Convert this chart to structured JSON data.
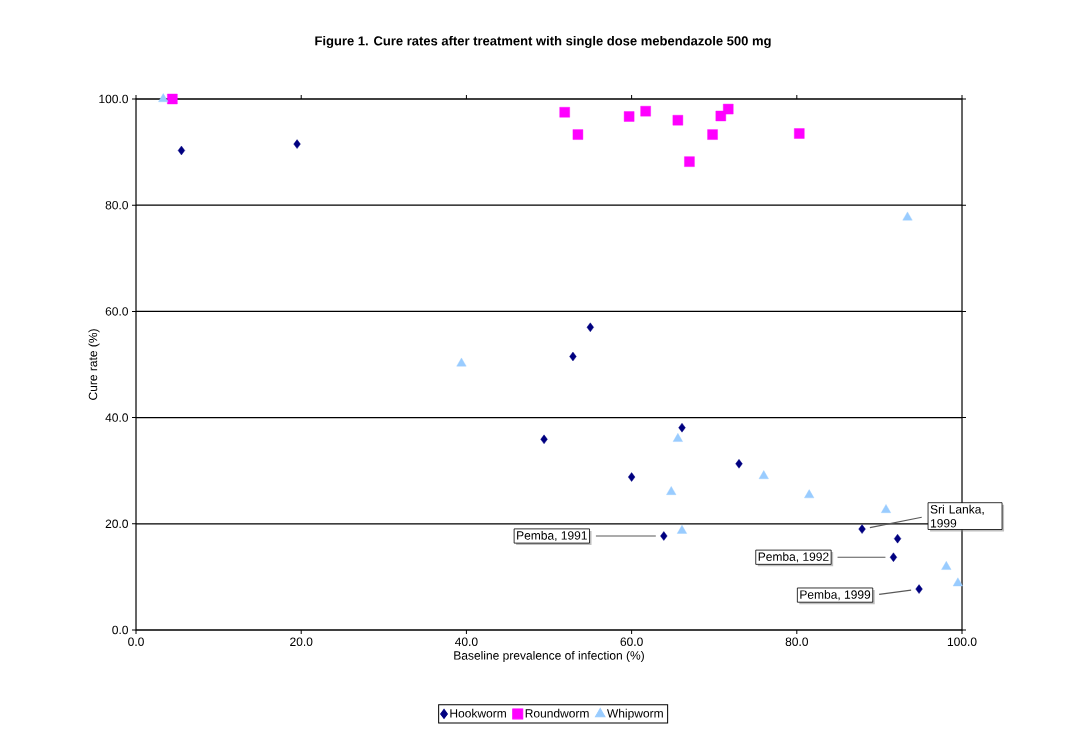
{
  "chart_data": {
    "type": "scatter",
    "title": "Figure 1. Cure rates after treatment with single dose mebendazole 500 mg",
    "xlabel": "Baseline prevalence of infection (%)",
    "ylabel": "Cure rate (%)",
    "xlim": [
      0,
      100
    ],
    "ylim": [
      0,
      100
    ],
    "xticks": [
      {
        "value": 0,
        "label": "0.0"
      },
      {
        "value": 20,
        "label": "20.0"
      },
      {
        "value": 40,
        "label": "40.0"
      },
      {
        "value": 60,
        "label": "60.0"
      },
      {
        "value": 80,
        "label": "80.0"
      },
      {
        "value": 100,
        "label": "100.0"
      }
    ],
    "yticks": [
      {
        "value": 0,
        "label": "0.0"
      },
      {
        "value": 20,
        "label": "20.0"
      },
      {
        "value": 40,
        "label": "40.0"
      },
      {
        "value": 60,
        "label": "60.0"
      },
      {
        "value": 80,
        "label": "80.0"
      },
      {
        "value": 100,
        "label": "100.0"
      }
    ],
    "grid": "y",
    "legend": "bottom",
    "series": [
      {
        "name": "Hookworm",
        "color": "#000080",
        "marker": "diamond",
        "x": [
          5.5,
          19.5,
          55.0,
          52.9,
          49.4,
          66.1,
          60.0,
          73.0,
          63.9,
          87.9,
          92.2,
          91.7,
          94.8
        ],
        "values": [
          90.3,
          91.5,
          57.0,
          51.5,
          35.9,
          38.1,
          28.8,
          31.3,
          17.7,
          19.0,
          17.2,
          13.7,
          7.7
        ]
      },
      {
        "name": "Roundworm",
        "color": "#ff00ff",
        "marker": "square",
        "x": [
          4.4,
          51.9,
          53.5,
          59.7,
          61.7,
          65.6,
          67.0,
          69.8,
          70.8,
          71.7,
          80.3
        ],
        "values": [
          100.0,
          97.5,
          93.3,
          96.7,
          97.7,
          96.0,
          88.2,
          93.3,
          96.8,
          98.1,
          93.5
        ]
      },
      {
        "name": "Whipworm",
        "color": "#99ccff",
        "marker": "triangle",
        "x": [
          3.3,
          93.4,
          39.4,
          65.6,
          64.8,
          76.0,
          66.1,
          81.5,
          90.8,
          98.1,
          99.5
        ],
        "values": [
          100.0,
          77.7,
          50.2,
          36.0,
          26.0,
          29.0,
          18.7,
          25.4,
          22.6,
          11.9,
          8.8
        ]
      }
    ],
    "annotations": [
      {
        "text": "Pemba, 1991",
        "x": 63.9,
        "y": 17.7
      },
      {
        "text": "Pemba, 1992",
        "x": 91.7,
        "y": 13.7
      },
      {
        "text": "Sri Lanka, 1999",
        "x": 87.9,
        "y": 19.0
      },
      {
        "text": "Pemba, 1999",
        "x": 94.8,
        "y": 7.7
      }
    ]
  }
}
